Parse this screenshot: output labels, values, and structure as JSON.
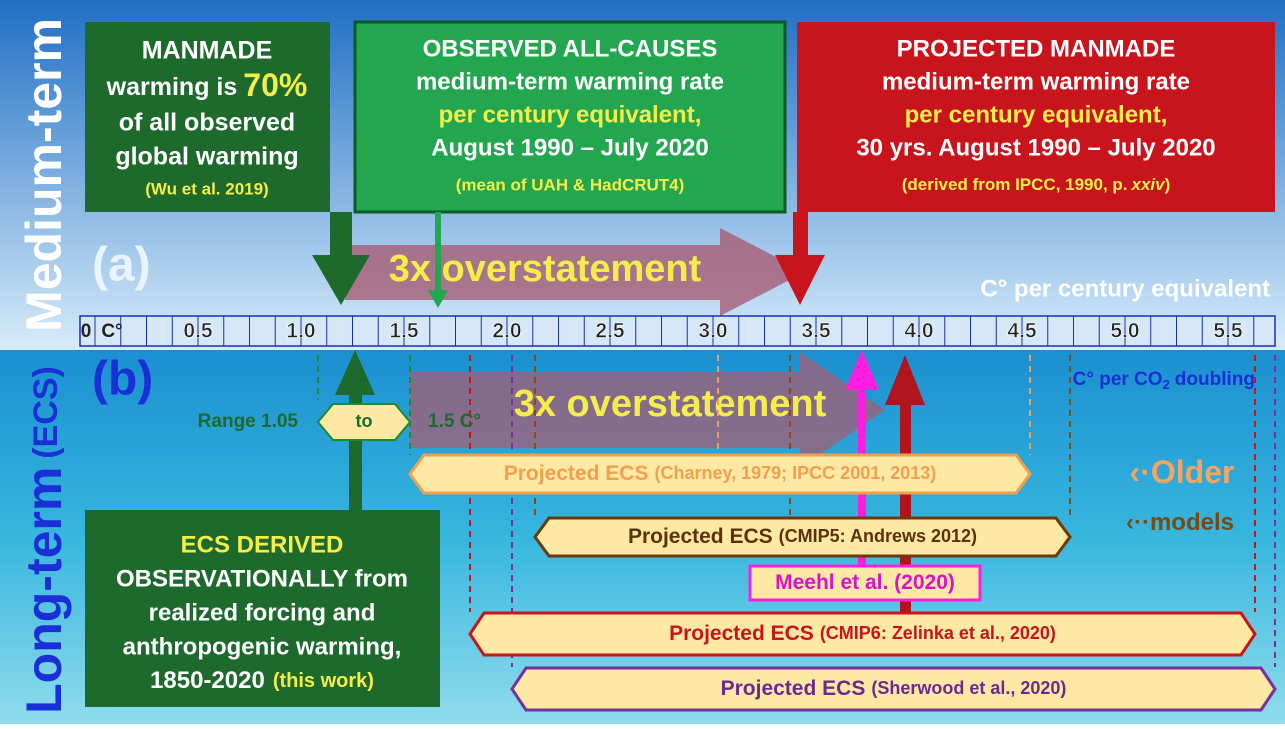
{
  "side_labels": {
    "medium": "Medium-term",
    "long": "Long-term",
    "long_suffix": "(ECS)"
  },
  "box_manmade": {
    "line1": "MANMADE",
    "line2": "warming is",
    "highlight": "70%",
    "line3": "of all observed",
    "line4": "global warming",
    "source": "(Wu et al. 2019)"
  },
  "box_observed": {
    "lines": [
      "OBSERVED ALL-CAUSES",
      "medium-term warming rate"
    ],
    "highlight": "per century equivalent,",
    "period": "August 1990 – July 2020",
    "source": "(mean of UAH & HadCRUT4)"
  },
  "box_projected": {
    "lines": [
      "PROJECTED MANMADE",
      "medium-term warming rate"
    ],
    "highlight": "per century equivalent,",
    "period": "30 yrs. August 1990 – July 2020",
    "source_start": "(derived from IPCC, 1990, p.",
    "source_italic": "xxiv",
    "source_end": ")"
  },
  "panel_a": {
    "label": "(a)",
    "arrow_text": "3x overstatement",
    "unit": "C° per century equivalent"
  },
  "scale": {
    "zero": "0",
    "unit": "C°",
    "labels": [
      "0.5",
      "1.0",
      "1.5",
      "2.0",
      "2.5",
      "3.0",
      "3.5",
      "4.0",
      "4.5",
      "5.0",
      "5.5"
    ]
  },
  "panel_b": {
    "label": "(b)",
    "arrow_text": "3x overstatement",
    "unit_start": "C° per CO",
    "unit_sub": "2",
    "unit_end": "doubling",
    "range_start": "Range 1.05",
    "range_mid": "to",
    "range_end": "1.5 C°"
  },
  "bars": [
    {
      "prefix": "Projected ECS",
      "detail": "(Charney, 1979; IPCC 2001, 2013)"
    },
    {
      "prefix": "Projected ECS",
      "detail": "(CMIP5: Andrews 2012)"
    },
    {
      "prefix": "Meehl et al. (2020)",
      "detail": ""
    },
    {
      "prefix": "Projected ECS",
      "detail": "(CMIP6: Zelinka et al., 2020)"
    },
    {
      "prefix": "Projected ECS",
      "detail": "(Sherwood et al., 2020)"
    }
  ],
  "older_models": {
    "older": "Older",
    "models": "models"
  },
  "box_derived": {
    "lines": [
      "ECS DERIVED",
      "OBSERVATIONALLY from",
      "realized forcing and",
      "anthropogenic warming,"
    ],
    "years": "1850-2020",
    "source": "(this work)"
  }
}
